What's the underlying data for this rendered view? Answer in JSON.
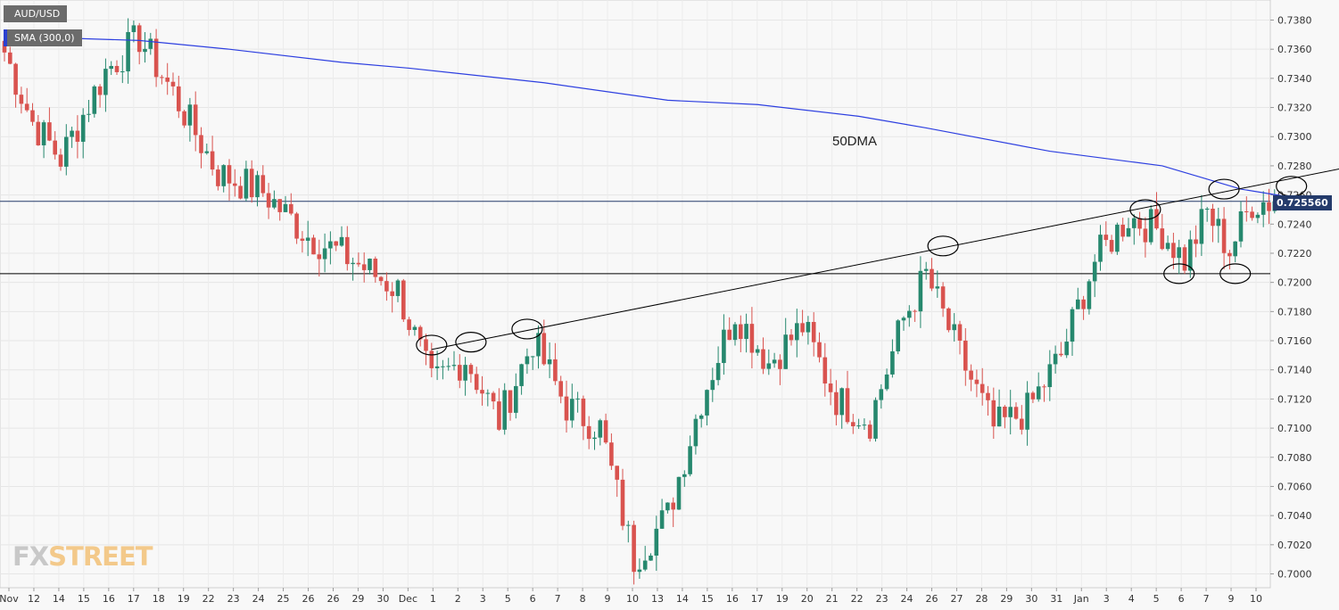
{
  "symbol": "AUD/USD",
  "indicator": "SMA (300,0)",
  "current_price_label": "0.725560",
  "annotation_label": "50DMA",
  "logo": {
    "part1": "FX",
    "part2": "STREET"
  },
  "colors": {
    "up": "#26886e",
    "down": "#d9534f",
    "sma": "#2d3fe0",
    "trend": "#000000",
    "price_tag": "#243b6b",
    "legend_bg": "#6b6b6b",
    "legend_marker": "#2b40d0"
  },
  "chart_data": {
    "type": "candlestick",
    "title": "",
    "xlabel": "",
    "ylabel": "",
    "ylim": [
      0.6985,
      0.7392
    ],
    "y_ticks": [
      "0.7000",
      "0.7020",
      "0.7040",
      "0.7060",
      "0.7080",
      "0.7100",
      "0.7120",
      "0.7140",
      "0.7160",
      "0.7180",
      "0.7200",
      "0.7220",
      "0.7240",
      "0.7260",
      "0.7280",
      "0.7300",
      "0.7320",
      "0.7340",
      "0.7360",
      "0.7380"
    ],
    "x_ticks": [
      "Nov",
      "12",
      "14",
      "15",
      "16",
      "17",
      "18",
      "19",
      "22",
      "23",
      "24",
      "25",
      "26",
      "26",
      "29",
      "30",
      "Dec",
      "1",
      "2",
      "3",
      "5",
      "6",
      "7",
      "8",
      "9",
      "10",
      "13",
      "14",
      "15",
      "16",
      "17",
      "19",
      "20",
      "21",
      "22",
      "23",
      "24",
      "26",
      "27",
      "28",
      "29",
      "30",
      "31",
      "Jan",
      "3",
      "4",
      "5",
      "6",
      "7",
      "9",
      "10"
    ],
    "grid": true,
    "current_price": 0.72556,
    "horizontal_levels": [
      0.72556,
      0.7206
    ],
    "ohlc_anchors": [
      {
        "index": 0,
        "close": 0.7358
      },
      {
        "index": 5,
        "close": 0.731
      },
      {
        "index": 10,
        "close": 0.7285
      },
      {
        "index": 18,
        "close": 0.7345
      },
      {
        "index": 24,
        "close": 0.7368
      },
      {
        "index": 30,
        "close": 0.733
      },
      {
        "index": 38,
        "close": 0.7275
      },
      {
        "index": 46,
        "close": 0.7262
      },
      {
        "index": 54,
        "close": 0.7232
      },
      {
        "index": 62,
        "close": 0.7215
      },
      {
        "index": 70,
        "close": 0.7195
      },
      {
        "index": 76,
        "close": 0.713
      },
      {
        "index": 82,
        "close": 0.7148
      },
      {
        "index": 88,
        "close": 0.7105
      },
      {
        "index": 94,
        "close": 0.716
      },
      {
        "index": 100,
        "close": 0.7115
      },
      {
        "index": 106,
        "close": 0.71
      },
      {
        "index": 112,
        "close": 0.701
      },
      {
        "index": 118,
        "close": 0.704
      },
      {
        "index": 124,
        "close": 0.712
      },
      {
        "index": 130,
        "close": 0.718
      },
      {
        "index": 136,
        "close": 0.7145
      },
      {
        "index": 142,
        "close": 0.717
      },
      {
        "index": 148,
        "close": 0.712
      },
      {
        "index": 154,
        "close": 0.7105
      },
      {
        "index": 160,
        "close": 0.7175
      },
      {
        "index": 164,
        "close": 0.7205
      },
      {
        "index": 170,
        "close": 0.715
      },
      {
        "index": 176,
        "close": 0.71
      },
      {
        "index": 182,
        "close": 0.7112
      },
      {
        "index": 188,
        "close": 0.715
      },
      {
        "index": 194,
        "close": 0.7215
      },
      {
        "index": 200,
        "close": 0.7245
      },
      {
        "index": 206,
        "close": 0.7235
      },
      {
        "index": 210,
        "close": 0.7215
      },
      {
        "index": 214,
        "close": 0.7248
      },
      {
        "index": 218,
        "close": 0.7222
      },
      {
        "index": 222,
        "close": 0.7255
      },
      {
        "index": 226,
        "close": 0.72556
      }
    ],
    "sma_series": {
      "name": "SMA (300,0)",
      "points": [
        {
          "index": 0,
          "value": 0.7369
        },
        {
          "index": 24,
          "value": 0.7366
        },
        {
          "index": 40,
          "value": 0.736
        },
        {
          "index": 60,
          "value": 0.7351
        },
        {
          "index": 72,
          "value": 0.7347
        },
        {
          "index": 96,
          "value": 0.7337
        },
        {
          "index": 118,
          "value": 0.7325
        },
        {
          "index": 134,
          "value": 0.7322
        },
        {
          "index": 152,
          "value": 0.7314
        },
        {
          "index": 164,
          "value": 0.7306
        },
        {
          "index": 186,
          "value": 0.729
        },
        {
          "index": 206,
          "value": 0.728
        },
        {
          "index": 220,
          "value": 0.7264
        },
        {
          "index": 228,
          "value": 0.7259
        }
      ]
    },
    "trendline": {
      "start": {
        "index": 76,
        "value": 0.7154
      },
      "end": {
        "index": 286,
        "value": 0.7315
      }
    },
    "circled_points": [
      {
        "index": 76,
        "value": 0.7157
      },
      {
        "index": 83,
        "value": 0.7159
      },
      {
        "index": 93,
        "value": 0.7168
      },
      {
        "index": 167,
        "value": 0.7225
      },
      {
        "index": 203,
        "value": 0.725
      },
      {
        "index": 209,
        "value": 0.7206
      },
      {
        "index": 217,
        "value": 0.7264
      },
      {
        "index": 219,
        "value": 0.7206
      },
      {
        "index": 229,
        "value": 0.7266
      }
    ]
  }
}
